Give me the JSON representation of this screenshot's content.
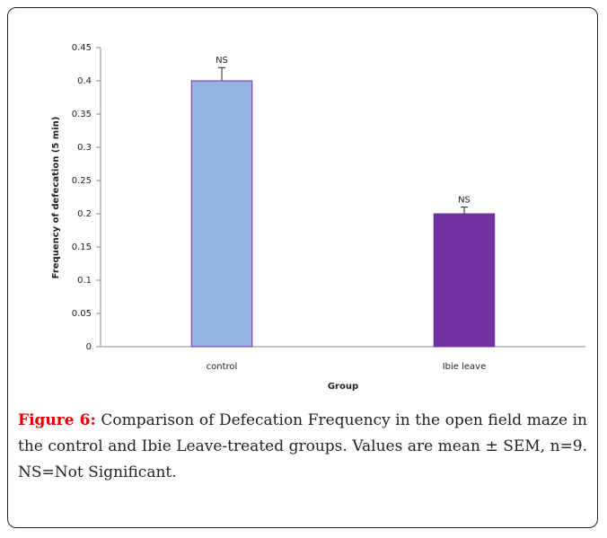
{
  "chart_data": {
    "type": "bar",
    "categories": [
      "control",
      "Ibie leave"
    ],
    "values": [
      0.4,
      0.2
    ],
    "errors": [
      0.02,
      0.01
    ],
    "annotations": [
      "NS",
      "NS"
    ],
    "colors": [
      "#95b3e0",
      "#7030a0"
    ],
    "xlabel": "Group",
    "ylabel": "Frequency of defecation (5 min)",
    "ylim": [
      0,
      0.45
    ],
    "yticks": [
      0,
      0.05,
      0.1,
      0.15,
      0.2,
      0.25,
      0.3,
      0.35,
      0.4,
      0.45
    ],
    "grid": false
  },
  "caption": {
    "label": "Figure 6:",
    "text": "Comparison of Defecation Frequency in the open field maze in the control and Ibie Leave-treated groups. Values are mean ± SEM, n=9. NS=Not Significant."
  }
}
